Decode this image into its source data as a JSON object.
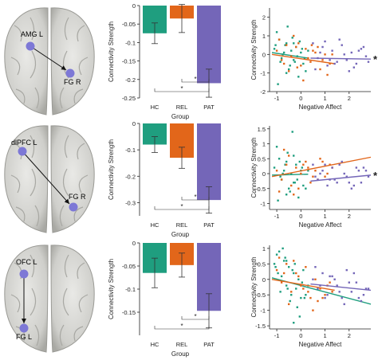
{
  "colors": {
    "hc": "#1f9e7f",
    "rel": "#e2661a",
    "pat": "#7466b8",
    "node": "#7d78d6",
    "sig": "#222222"
  },
  "significance_star": "*",
  "group_xlabel": "Group",
  "bar_ylabel": "Connectivity Strength",
  "scatter_xlabel": "Negative Affect",
  "scatter_ylabel": "Connectivity Strength",
  "rows": [
    {
      "brain": {
        "src_label": "AMG L",
        "dst_label": "FG R"
      }
    },
    {
      "brain": {
        "src_label": "dlPFC L",
        "dst_label": "FG R"
      }
    },
    {
      "brain": {
        "src_label": "OFC L",
        "dst_label": "FG L"
      }
    }
  ],
  "chart_data": [
    {
      "type": "bar",
      "categories": [
        "HC",
        "REL",
        "PAT"
      ],
      "values": [
        -0.075,
        -0.035,
        -0.21
      ],
      "errors": [
        0.028,
        0.038,
        0.038
      ],
      "xlabel": "Group",
      "ylabel": "Connectivity Strength",
      "ylim": [
        -0.25,
        0
      ],
      "yticks": [
        0,
        -0.05,
        -0.1,
        -0.15,
        -0.2,
        -0.25
      ],
      "ytick_labels": [
        "0",
        "-0.05",
        "-0.1",
        "-0.15",
        "-0.2",
        "-0.25"
      ]
    },
    {
      "type": "scatter",
      "xlabel": "Negative Affect",
      "ylabel": "Connectivity Strength",
      "xlim": [
        -1.3,
        2.9
      ],
      "ylim": [
        -2,
        2.5
      ],
      "xticks": [
        -1,
        0,
        1,
        2
      ],
      "xtick_labels": [
        "-1",
        "0",
        "1",
        "2"
      ],
      "yticks": [
        -2,
        -1,
        0,
        1,
        2
      ],
      "ytick_labels": [
        "-2",
        "-1",
        "0",
        "1",
        "2"
      ],
      "series": [
        {
          "x": [
            -1.1,
            -0.9,
            -0.85,
            -0.7,
            -0.6,
            -0.5,
            -0.4,
            -0.3,
            -0.2,
            -0.1,
            0,
            0.1,
            -1.0,
            -0.8,
            -0.65,
            -0.45,
            -0.35,
            -0.15,
            0.05,
            0.2,
            -0.95,
            -0.75,
            -0.55,
            -0.25,
            -0.05,
            0.3,
            -1.05,
            -0.6,
            -0.3,
            0.15
          ],
          "y": [
            0.3,
            0.8,
            -0.4,
            0.1,
            0.6,
            -0.8,
            0.2,
            -0.3,
            0.4,
            -1.2,
            0.1,
            -0.5,
            1.2,
            -0.2,
            0.5,
            -0.6,
            0.9,
            -0.1,
            0.3,
            -0.9,
            -1.6,
            0.0,
            1.5,
            -0.4,
            0.7,
            0.2,
            0.5,
            -1.0,
            0.6,
            -0.2
          ],
          "fit": [
            [
              -1.2,
              0.1
            ],
            [
              0.3,
              -0.2
            ]
          ]
        },
        {
          "x": [
            -1.0,
            -0.8,
            -0.6,
            -0.4,
            -0.2,
            0,
            0.2,
            0.4,
            0.6,
            0.8,
            1.0,
            1.2,
            -0.9,
            -0.5,
            -0.1,
            0.3,
            0.7,
            1.1,
            -0.7,
            -0.3,
            0.1,
            0.5,
            0.9,
            1.3,
            -0.15,
            0.45
          ],
          "y": [
            0.2,
            -0.3,
            0.5,
            -0.1,
            0.4,
            -0.6,
            0.3,
            -0.4,
            0.1,
            -0.8,
            0.0,
            -0.5,
            0.8,
            -0.9,
            0.6,
            -0.2,
            0.4,
            -1.1,
            -0.5,
            1.0,
            -1.4,
            0.2,
            -0.3,
            0.0,
            -0.7,
            0.5
          ],
          "fit": [
            [
              -1.2,
              0.0
            ],
            [
              1.4,
              -0.5
            ]
          ]
        },
        {
          "x": [
            0.5,
            0.7,
            0.9,
            1.1,
            1.3,
            1.5,
            1.7,
            1.9,
            2.1,
            2.3,
            2.5,
            2.7,
            0.6,
            1.0,
            1.4,
            1.8,
            2.2,
            2.6,
            0.8,
            1.2,
            1.6,
            2.0,
            2.4,
            2.8
          ],
          "y": [
            0.6,
            -0.2,
            0.4,
            -0.6,
            0.2,
            -0.4,
            0.5,
            -0.3,
            0.1,
            -0.5,
            0.3,
            -0.1,
            -0.8,
            0.7,
            -0.5,
            0.0,
            -0.7,
            0.4,
            0.1,
            -0.3,
            0.8,
            -0.9,
            0.2,
            -0.4
          ],
          "fit": [
            [
              0.4,
              -0.2
            ],
            [
              2.9,
              -0.25
            ]
          ]
        }
      ]
    },
    {
      "type": "bar",
      "categories": [
        "HC",
        "REL",
        "PAT"
      ],
      "values": [
        -0.08,
        -0.13,
        -0.29
      ],
      "errors": [
        0.03,
        0.04,
        0.05
      ],
      "xlabel": "Group",
      "ylabel": "Connectivity Strength",
      "ylim": [
        -0.35,
        0
      ],
      "yticks": [
        0,
        -0.1,
        -0.2,
        -0.3
      ],
      "ytick_labels": [
        "0",
        "-0.1",
        "-0.2",
        "-0.3"
      ]
    },
    {
      "type": "scatter",
      "xlabel": "Negative Affect",
      "ylabel": "Connectivity Strength",
      "xlim": [
        -1.3,
        2.9
      ],
      "ylim": [
        -1.2,
        1.6
      ],
      "xticks": [
        -1,
        0,
        1,
        2
      ],
      "xtick_labels": [
        "-1",
        "0",
        "1",
        "2"
      ],
      "yticks": [
        -1,
        -0.5,
        0,
        0.5,
        1,
        1.5
      ],
      "ytick_labels": [
        "-1",
        "-0.5",
        "0",
        "0.5",
        "1",
        "1.5"
      ],
      "series": [
        {
          "x": [
            -1.1,
            -0.9,
            -0.8,
            -0.7,
            -0.6,
            -0.5,
            -0.4,
            -0.3,
            -0.2,
            -0.1,
            0,
            0.1,
            -1.0,
            -0.85,
            -0.65,
            -0.45,
            -0.35,
            -0.15,
            0.05,
            0.2,
            -0.95,
            -0.75,
            -0.55,
            -0.25,
            -0.05,
            0.3,
            -0.6,
            -0.3
          ],
          "y": [
            0.2,
            0.5,
            -0.2,
            0.1,
            0.4,
            -0.5,
            0.0,
            -0.3,
            0.3,
            -0.8,
            0.1,
            -0.4,
            0.9,
            -0.1,
            0.3,
            -0.6,
            1.4,
            -0.2,
            0.2,
            -0.5,
            -0.9,
            0.0,
            0.7,
            -0.3,
            0.4,
            0.1,
            -0.7,
            0.6
          ],
          "fit": [
            [
              -1.2,
              -0.05
            ],
            [
              0.3,
              -0.02
            ]
          ]
        },
        {
          "x": [
            -1.0,
            -0.8,
            -0.6,
            -0.4,
            -0.2,
            0,
            0.2,
            0.4,
            0.6,
            0.8,
            1.0,
            1.2,
            -0.9,
            -0.5,
            -0.1,
            0.3,
            0.7,
            1.1,
            -0.7,
            -0.3,
            0.1,
            0.5,
            0.9,
            1.3
          ],
          "y": [
            0.1,
            -0.2,
            0.3,
            -0.4,
            0.2,
            0.0,
            0.4,
            -0.3,
            0.1,
            0.5,
            -0.1,
            0.3,
            -0.6,
            0.6,
            -0.5,
            0.2,
            -0.2,
            0.0,
            0.8,
            -0.7,
            0.3,
            -0.1,
            0.4,
            0.2
          ],
          "fit": [
            [
              -1.2,
              -0.1
            ],
            [
              2.9,
              0.55
            ]
          ]
        },
        {
          "x": [
            0.5,
            0.7,
            0.9,
            1.1,
            1.3,
            1.5,
            1.7,
            1.9,
            2.1,
            2.3,
            2.5,
            2.7,
            0.6,
            1.0,
            1.4,
            1.8,
            2.2,
            2.6,
            0.8,
            1.2,
            1.6,
            2.0,
            2.4,
            2.8
          ],
          "y": [
            0.3,
            -0.2,
            0.1,
            -0.4,
            0.2,
            -0.3,
            0.4,
            -0.1,
            -0.5,
            0.2,
            -0.3,
            0.1,
            -0.1,
            0.3,
            -0.2,
            0.0,
            -0.4,
            0.2,
            0.0,
            -0.2,
            0.3,
            -0.3,
            0.1,
            -0.1
          ],
          "fit": [
            [
              0.4,
              -0.25
            ],
            [
              2.9,
              -0.05
            ]
          ]
        }
      ]
    },
    {
      "type": "bar",
      "categories": [
        "HC",
        "REL",
        "PAT"
      ],
      "values": [
        -0.065,
        -0.048,
        -0.147
      ],
      "errors": [
        0.032,
        0.026,
        0.037
      ],
      "xlabel": "Group",
      "ylabel": "Connectivity Strength",
      "ylim": [
        -0.2,
        0
      ],
      "yticks": [
        0,
        -0.05,
        -0.1,
        -0.15
      ],
      "ytick_labels": [
        "0",
        "-0.05",
        "-0.1",
        "-0.15"
      ]
    },
    {
      "type": "scatter",
      "xlabel": "Negative Affect",
      "ylabel": "Connectivity Strength",
      "xlim": [
        -1.3,
        2.9
      ],
      "ylim": [
        -1.6,
        1.1
      ],
      "xticks": [
        -1,
        0,
        1,
        2
      ],
      "xtick_labels": [
        "-1",
        "0",
        "1",
        "2"
      ],
      "yticks": [
        -1.5,
        -1,
        -0.5,
        0,
        0.5,
        1
      ],
      "ytick_labels": [
        "-1.5",
        "-1",
        "-0.5",
        "0",
        "0.5",
        "1"
      ],
      "series": [
        {
          "x": [
            -1.1,
            -0.9,
            -0.8,
            -0.7,
            -0.6,
            -0.5,
            -0.4,
            -0.3,
            -0.2,
            -0.1,
            0,
            0.1,
            -1.0,
            -0.85,
            -0.65,
            -0.45,
            -0.35,
            -0.15,
            0.05,
            0.2,
            -0.95,
            -0.75,
            -0.55,
            -0.25,
            -0.05,
            0.3,
            -0.6,
            -0.3,
            0.15,
            -1.05
          ],
          "y": [
            0.5,
            0.9,
            0.1,
            0.6,
            -0.2,
            0.4,
            -0.5,
            0.2,
            -0.3,
            0.0,
            -0.6,
            0.3,
            0.8,
            -0.4,
            0.7,
            -0.7,
            0.3,
            -0.9,
            -0.1,
            -0.5,
            0.2,
            1.0,
            -0.3,
            0.5,
            -1.2,
            -0.2,
            0.6,
            -1.4,
            -0.6,
            0.4
          ],
          "fit": [
            [
              -1.2,
              0.05
            ],
            [
              2.9,
              -0.8
            ]
          ]
        },
        {
          "x": [
            -1.0,
            -0.8,
            -0.6,
            -0.4,
            -0.2,
            0,
            0.2,
            0.4,
            0.6,
            0.8,
            1.0,
            1.2,
            -0.9,
            -0.5,
            -0.1,
            0.3,
            0.7,
            1.1,
            -0.7,
            -0.3,
            0.1,
            0.5,
            0.9,
            1.3
          ],
          "y": [
            0.3,
            -0.1,
            0.5,
            -0.4,
            0.2,
            -0.2,
            0.4,
            -0.6,
            0.0,
            -0.3,
            -0.5,
            -0.1,
            0.7,
            -0.8,
            0.1,
            -0.4,
            -0.7,
            -0.2,
            0.2,
            0.6,
            -0.3,
            -1.0,
            -0.6,
            -0.4
          ],
          "fit": [
            [
              -1.2,
              0.0
            ],
            [
              1.4,
              -0.35
            ]
          ]
        },
        {
          "x": [
            0.5,
            0.7,
            0.9,
            1.1,
            1.3,
            1.5,
            1.7,
            1.9,
            2.1,
            2.3,
            2.5,
            2.7,
            0.6,
            1.0,
            1.4,
            1.8,
            2.2,
            2.6,
            0.8,
            1.2,
            1.6,
            2.0,
            2.4,
            2.8
          ],
          "y": [
            0.0,
            -0.3,
            0.2,
            -0.5,
            0.1,
            -0.2,
            -0.6,
            0.3,
            -0.4,
            -0.1,
            -0.7,
            -0.3,
            0.4,
            -0.6,
            0.0,
            -0.8,
            0.2,
            -0.5,
            -0.2,
            0.1,
            -0.4,
            -0.1,
            -0.6,
            -0.3
          ],
          "fit": [
            [
              0.4,
              -0.15
            ],
            [
              2.9,
              -0.35
            ]
          ]
        }
      ]
    }
  ]
}
